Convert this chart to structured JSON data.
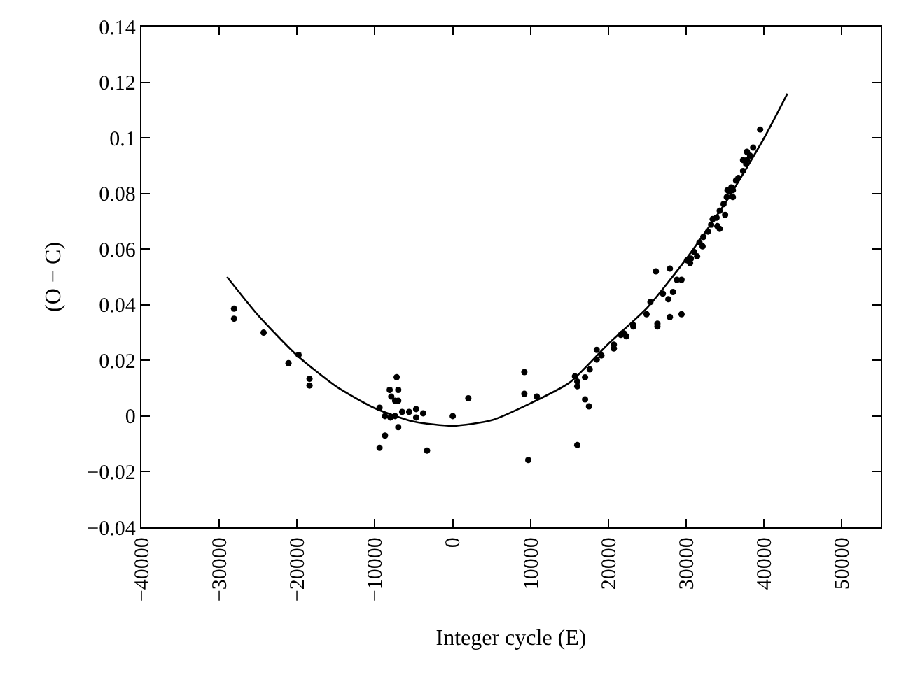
{
  "chart_data": {
    "type": "scatter",
    "xlabel": "Integer cycle (E)",
    "ylabel": "(O − C)",
    "xlim": [
      -40000,
      55000
    ],
    "xticks": [
      {
        "value": -40000,
        "label": "−40000"
      },
      {
        "value": -30000,
        "label": "−30000"
      },
      {
        "value": -20000,
        "label": "−20000"
      },
      {
        "value": -10000,
        "label": "−10000"
      },
      0,
      10000,
      20000,
      30000,
      40000,
      50000
    ],
    "ylim": [
      -0.04,
      0.14
    ],
    "yticks": [
      {
        "value": -0.04,
        "label": "−0.04"
      },
      {
        "value": -0.02,
        "label": "−0.02"
      },
      0,
      0.02,
      0.04,
      0.06,
      0.08,
      0.1,
      0.12,
      0.14
    ],
    "series": [
      {
        "marker": "circle",
        "color": "#000000",
        "x": [
          -28100,
          -28100,
          -24300,
          -21100,
          -19800,
          -18400,
          -18400,
          -9400,
          -9400,
          -8700,
          -8700,
          -8000,
          -8100,
          -7900,
          -7200,
          -7000,
          -7400,
          -7000,
          -7400,
          -7000,
          -6500,
          -5600,
          -4700,
          -4700,
          -3800,
          -3300,
          0,
          2000,
          9200,
          9200,
          10800,
          9700,
          16000,
          15700,
          16000,
          16000,
          17000,
          17000,
          17500,
          17600,
          18500,
          18500,
          19100,
          20700,
          20700,
          21600,
          22300,
          22000,
          23200,
          26300,
          23200,
          21800,
          24900,
          25400,
          26300,
          26100,
          27900,
          27000,
          27700,
          28300,
          27900,
          29400,
          28800,
          29400,
          30100,
          30600,
          31000,
          31700,
          32200,
          32100,
          33200,
          33400,
          34000,
          33900,
          34300,
          34800,
          35200,
          35500,
          35800,
          36000,
          36000,
          36400,
          36700,
          37300,
          37700,
          37800,
          37300,
          38200,
          38600,
          37800,
          39500,
          35300,
          35000,
          34300,
          32800,
          31400,
          30500
        ],
        "values": [
          0.0386,
          0.035,
          0.03,
          0.019,
          0.022,
          0.0134,
          0.011,
          0.003,
          -0.0114,
          -0.007,
          0.0,
          -0.0005,
          0.0094,
          0.007,
          0.014,
          0.0094,
          0.0055,
          0.0055,
          0.0,
          -0.004,
          0.0015,
          0.0015,
          0.0025,
          -0.0005,
          0.001,
          -0.0124,
          0.0,
          0.0064,
          0.0158,
          0.008,
          0.007,
          -0.0158,
          -0.0104,
          0.0143,
          0.0124,
          0.0107,
          0.0139,
          0.006,
          0.0035,
          0.0168,
          0.0238,
          0.0203,
          0.0218,
          0.0243,
          0.0257,
          0.0292,
          0.0287,
          0.0297,
          0.0322,
          0.0322,
          0.0327,
          0.0297,
          0.0366,
          0.041,
          0.0332,
          0.052,
          0.053,
          0.044,
          0.042,
          0.0446,
          0.0356,
          0.0366,
          0.049,
          0.049,
          0.056,
          0.0566,
          0.059,
          0.0624,
          0.0644,
          0.061,
          0.0688,
          0.0708,
          0.0683,
          0.0713,
          0.0738,
          0.0762,
          0.0787,
          0.0807,
          0.0822,
          0.0812,
          0.0787,
          0.0847,
          0.0856,
          0.0881,
          0.0906,
          0.092,
          0.092,
          0.0936,
          0.0965,
          0.095,
          0.103,
          0.0812,
          0.0723,
          0.0673,
          0.0663,
          0.0574,
          0.055
        ]
      },
      {
        "type": "line",
        "marker": "none",
        "line_style": "solid",
        "color": "#000000",
        "x": [
          -29000,
          -25000,
          -20000,
          -15000,
          -10000,
          -5000,
          0,
          5000,
          10000,
          15000,
          20000,
          25000,
          30000,
          35000,
          40000,
          43000
        ],
        "values": [
          0.05,
          0.0362,
          0.0218,
          0.0107,
          0.0028,
          -0.002,
          -0.0035,
          -0.0015,
          0.0046,
          0.012,
          0.026,
          0.039,
          0.0565,
          0.0765,
          0.0999,
          0.1159
        ]
      }
    ]
  }
}
